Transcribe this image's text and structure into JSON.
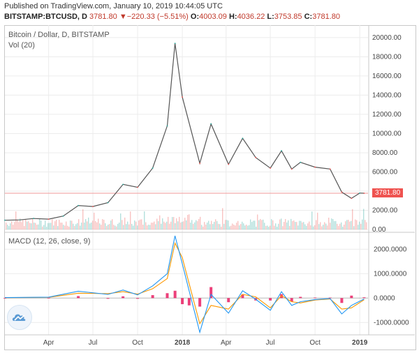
{
  "header": {
    "published": "Published on TradingView.com, January 10, 2019 10:44:05 UTC",
    "symbol": "BITSTAMP:BTCUSD, D",
    "last": "3781.80",
    "change_arrow": "▼",
    "change": "−220.33 (−5.51%)",
    "o_label": "O:",
    "o": "4003.09",
    "h_label": "H:",
    "h": "4036.22",
    "l_label": "L:",
    "l": "3753.85",
    "c_label": "C:",
    "c": "3781.80"
  },
  "colors": {
    "up": "#26a69a",
    "down": "#ef5350",
    "macd": "#2196f3",
    "signal": "#ff9800",
    "hist": "#e91e63",
    "grid": "#ececec"
  },
  "icons": {
    "logo": "tradingview-cloud-icon"
  },
  "price_tag": "3781.80",
  "chart_data": [
    {
      "type": "line",
      "title": "Bitcoin / Dollar, D, BITSTAMP",
      "subtitle": "Vol (20)",
      "yticks": [
        "20000.00",
        "18000.00",
        "16000.00",
        "14000.00",
        "12000.00",
        "10000.00",
        "8000.00",
        "6000.00",
        "4000.00",
        "2000.00",
        "0.00"
      ],
      "ylim": [
        0,
        20500
      ],
      "xticks": [
        "Apr",
        "Jul",
        "Oct",
        "2018",
        "Apr",
        "Jul",
        "Oct",
        "2019"
      ],
      "x": [
        "2017-01-01",
        "2017-02-01",
        "2017-03-01",
        "2017-04-01",
        "2017-05-01",
        "2017-06-01",
        "2017-07-01",
        "2017-08-01",
        "2017-09-01",
        "2017-10-01",
        "2017-11-01",
        "2017-12-01",
        "2017-12-17",
        "2018-01-01",
        "2018-02-06",
        "2018-03-01",
        "2018-04-06",
        "2018-05-05",
        "2018-06-01",
        "2018-07-01",
        "2018-07-24",
        "2018-08-14",
        "2018-09-01",
        "2018-10-01",
        "2018-11-01",
        "2018-11-25",
        "2018-12-15",
        "2019-01-01",
        "2019-01-10"
      ],
      "series": [
        {
          "values": [
            970,
            1000,
            1150,
            1080,
            1400,
            2500,
            2400,
            2800,
            4700,
            4400,
            6400,
            10800,
            19400,
            13800,
            6900,
            11000,
            6800,
            9500,
            7500,
            6400,
            8200,
            6300,
            7000,
            6500,
            6300,
            3900,
            3250,
            3800,
            3781.8
          ]
        }
      ]
    },
    {
      "type": "line",
      "title": "MACD (12, 26, close, 9)",
      "yticks": [
        "2000.0000",
        "1000.0000",
        "0.0000",
        "-1000.0000"
      ],
      "ylim": [
        -1450,
        2550
      ],
      "x": [
        "2017-01-01",
        "2017-04-01",
        "2017-06-01",
        "2017-08-01",
        "2017-09-01",
        "2017-10-01",
        "2017-11-01",
        "2017-12-01",
        "2017-12-17",
        "2018-01-01",
        "2018-01-15",
        "2018-02-06",
        "2018-03-01",
        "2018-04-06",
        "2018-05-05",
        "2018-06-01",
        "2018-07-01",
        "2018-07-24",
        "2018-08-14",
        "2018-09-01",
        "2018-10-01",
        "2018-11-01",
        "2018-11-25",
        "2018-12-15",
        "2019-01-10"
      ],
      "series": [
        {
          "values": [
            20,
            40,
            280,
            150,
            330,
            130,
            500,
            1000,
            2550,
            1400,
            300,
            -1400,
            150,
            -620,
            300,
            -50,
            -500,
            260,
            -300,
            -150,
            -60,
            -20,
            -650,
            -300,
            -40
          ]
        },
        {
          "values": [
            15,
            30,
            200,
            180,
            260,
            160,
            380,
            800,
            2250,
            1650,
            600,
            -1050,
            -300,
            -450,
            150,
            50,
            -400,
            100,
            -150,
            -200,
            -80,
            -40,
            -450,
            -400,
            -70
          ]
        }
      ]
    }
  ]
}
